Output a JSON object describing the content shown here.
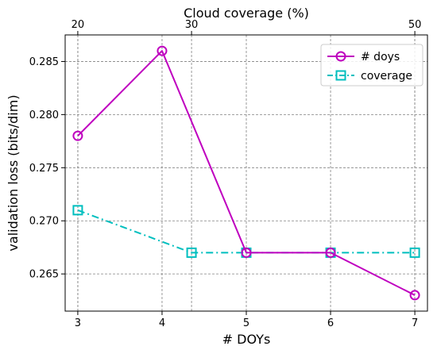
{
  "chart_data": {
    "type": "line",
    "x": [
      3,
      4,
      5,
      6,
      7
    ],
    "xlabel": "# DOYs",
    "ylabel": "validation loss (bits/dim)",
    "xlim": [
      2.85,
      7.15
    ],
    "ylim": [
      0.2615,
      0.2875
    ],
    "xticks": [
      "3",
      "4",
      "5",
      "6",
      "7"
    ],
    "yticks": [
      "0.265",
      "0.270",
      "0.275",
      "0.280",
      "0.285"
    ],
    "grid": true,
    "legend_position": "top-right",
    "series": [
      {
        "name": "# doys",
        "x": [
          3,
          4,
          5,
          6,
          7
        ],
        "values": [
          0.278,
          0.286,
          0.267,
          0.267,
          0.263
        ],
        "color": "#bf00bf",
        "linestyle": "solid",
        "marker": "circle"
      },
      {
        "name": "coverage",
        "x": [
          3,
          4.35,
          5,
          6,
          7
        ],
        "values": [
          0.271,
          0.267,
          0.267,
          0.267,
          0.267
        ],
        "color": "#00bfbf",
        "linestyle": "dashdot",
        "marker": "square"
      }
    ],
    "secondary_x_axis": {
      "label": "Cloud coverage (%)",
      "ticks": [
        {
          "label": "20",
          "value": 20,
          "at_primary_x": 3
        },
        {
          "label": "30",
          "value": 30,
          "at_primary_x": 4.35
        },
        {
          "label": "50",
          "value": 50,
          "at_primary_x": 7
        }
      ]
    }
  }
}
